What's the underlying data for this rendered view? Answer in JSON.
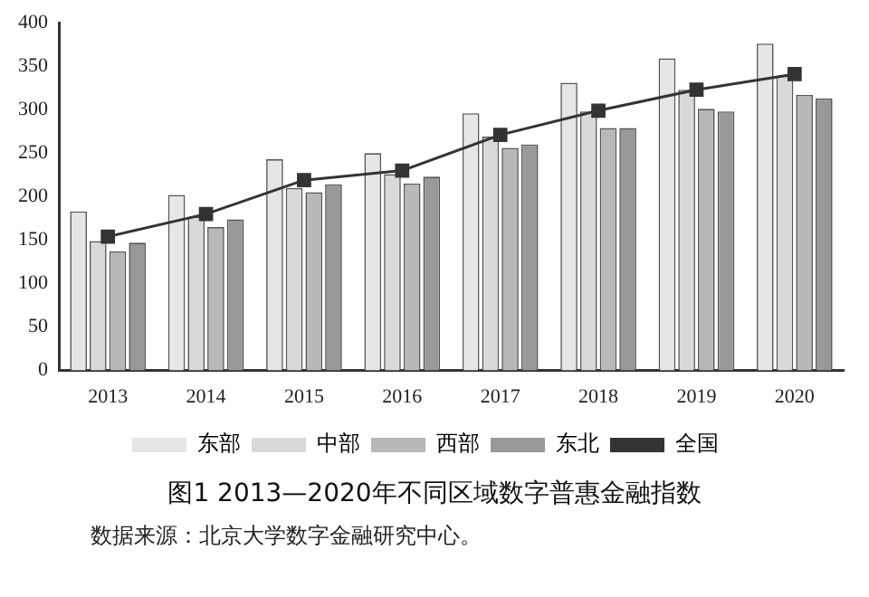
{
  "chart_data": {
    "type": "bar",
    "title": "图1  2013—2020年不同区域数字普惠金融指数",
    "categories": [
      "2013",
      "2014",
      "2015",
      "2016",
      "2017",
      "2018",
      "2019",
      "2020"
    ],
    "series": [
      {
        "name": "东部",
        "color": "#e6e6e6",
        "values": [
          183,
          202,
          243,
          250,
          296,
          331,
          359,
          376
        ]
      },
      {
        "name": "中部",
        "color": "#d9d9d9",
        "values": [
          149,
          177,
          210,
          226,
          269,
          298,
          323,
          339
        ]
      },
      {
        "name": "西部",
        "color": "#b8b8b8",
        "values": [
          137,
          165,
          205,
          215,
          256,
          279,
          301,
          317
        ]
      },
      {
        "name": "东北",
        "color": "#999999",
        "values": [
          147,
          174,
          214,
          223,
          260,
          279,
          298,
          313
        ]
      },
      {
        "name": "全国",
        "type": "line",
        "color": "#333333",
        "marker": "square",
        "values": [
          154,
          180,
          219,
          230,
          271,
          299,
          323,
          341
        ]
      }
    ],
    "ylim": [
      0,
      400
    ],
    "yticks": [
      0,
      50,
      100,
      150,
      200,
      250,
      300,
      350,
      400
    ],
    "grid": false,
    "legend": "bottom",
    "annotations": [
      "数据来源：北京大学数字金融研究中心。"
    ]
  }
}
